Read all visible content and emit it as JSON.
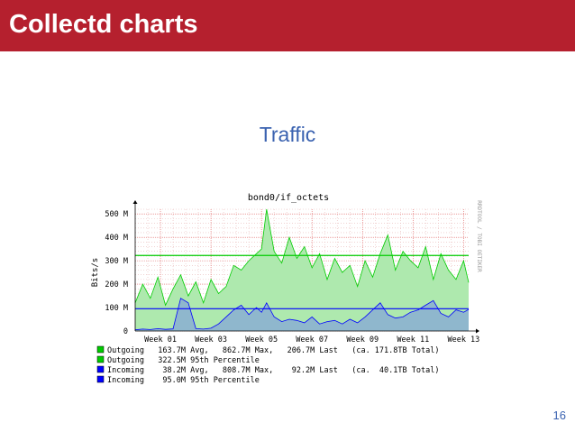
{
  "slide": {
    "title": "Collectd charts",
    "heading": "Traffic",
    "page_number": "16"
  },
  "colors": {
    "banner": "#b5202e",
    "heading": "#3a62b0",
    "outgoing_fill": "#aee9ae",
    "outgoing_line": "#00cc00",
    "incoming_fill": "#8aaed2",
    "incoming_line": "#0000ff",
    "grid": "#e8b8b8"
  },
  "chart_data": {
    "type": "area",
    "title": "bond0/if_octets",
    "ylabel": "Bits/s",
    "watermark": "RRDTOOL / TOBI OETIKER",
    "ylim": [
      0,
      520
    ],
    "y_unit": "M",
    "y_ticks": [
      {
        "value": 0,
        "label": "0"
      },
      {
        "value": 100,
        "label": "100 M"
      },
      {
        "value": 200,
        "label": "200 M"
      },
      {
        "value": 300,
        "label": "300 M"
      },
      {
        "value": 400,
        "label": "400 M"
      },
      {
        "value": 500,
        "label": "500 M"
      }
    ],
    "xlim": [
      0,
      13.2
    ],
    "x_ticks": [
      {
        "value": 1,
        "label": "Week 01"
      },
      {
        "value": 3,
        "label": "Week 03"
      },
      {
        "value": 5,
        "label": "Week 05"
      },
      {
        "value": 7,
        "label": "Week 07"
      },
      {
        "value": 9,
        "label": "Week 09"
      },
      {
        "value": 11,
        "label": "Week 11"
      },
      {
        "value": 13,
        "label": "Week 13"
      }
    ],
    "series": [
      {
        "name": "Outgoing",
        "x": [
          0,
          0.3,
          0.6,
          0.9,
          1.2,
          1.5,
          1.8,
          2.1,
          2.4,
          2.7,
          3.0,
          3.3,
          3.6,
          3.9,
          4.2,
          4.5,
          4.8,
          5.0,
          5.2,
          5.5,
          5.8,
          6.1,
          6.4,
          6.7,
          7.0,
          7.3,
          7.6,
          7.9,
          8.2,
          8.5,
          8.8,
          9.1,
          9.4,
          9.7,
          10.0,
          10.3,
          10.6,
          10.9,
          11.2,
          11.5,
          11.8,
          12.1,
          12.4,
          12.7,
          13.0,
          13.2
        ],
        "values": [
          120,
          200,
          140,
          230,
          110,
          180,
          240,
          150,
          210,
          120,
          220,
          160,
          190,
          280,
          260,
          300,
          330,
          350,
          520,
          340,
          290,
          400,
          310,
          360,
          270,
          330,
          220,
          310,
          250,
          280,
          190,
          300,
          230,
          330,
          410,
          260,
          340,
          300,
          270,
          360,
          220,
          330,
          260,
          220,
          300,
          207
        ],
        "avg": "163.7M",
        "max": "862.7M",
        "last": "206.7M",
        "total": "171.8TB",
        "percentile_95": 322.5,
        "percentile_label": "322.5M"
      },
      {
        "name": "Incoming",
        "x": [
          0,
          0.3,
          0.6,
          0.9,
          1.2,
          1.5,
          1.8,
          2.1,
          2.4,
          2.7,
          3.0,
          3.3,
          3.6,
          3.9,
          4.2,
          4.5,
          4.8,
          5.0,
          5.2,
          5.5,
          5.8,
          6.1,
          6.4,
          6.7,
          7.0,
          7.3,
          7.6,
          7.9,
          8.2,
          8.5,
          8.8,
          9.1,
          9.4,
          9.7,
          10.0,
          10.3,
          10.6,
          10.9,
          11.2,
          11.5,
          11.8,
          12.1,
          12.4,
          12.7,
          13.0,
          13.2
        ],
        "values": [
          5,
          8,
          6,
          10,
          7,
          9,
          140,
          120,
          10,
          8,
          12,
          30,
          60,
          90,
          110,
          70,
          100,
          80,
          120,
          60,
          40,
          50,
          45,
          35,
          60,
          30,
          40,
          45,
          30,
          50,
          35,
          60,
          90,
          120,
          70,
          55,
          60,
          80,
          90,
          110,
          130,
          75,
          60,
          90,
          80,
          92
        ],
        "avg": "38.2M",
        "max": "808.7M",
        "last": "92.2M",
        "total": "40.1TB",
        "percentile_95": 95.0,
        "percentile_label": "95.0M"
      }
    ],
    "legend": [
      {
        "color": "#00cc00",
        "text": "Outgoing   163.7M Avg,   862.7M Max,   206.7M Last   (ca. 171.8TB Total)"
      },
      {
        "color": "#00cc00",
        "text": "Outgoing   322.5M 95th Percentile"
      },
      {
        "color": "#0000ff",
        "text": "Incoming    38.2M Avg,   808.7M Max,    92.2M Last   (ca.  40.1TB Total)"
      },
      {
        "color": "#0000ff",
        "text": "Incoming    95.0M 95th Percentile"
      }
    ],
    "legend_placement": "bottom",
    "grid": true
  }
}
